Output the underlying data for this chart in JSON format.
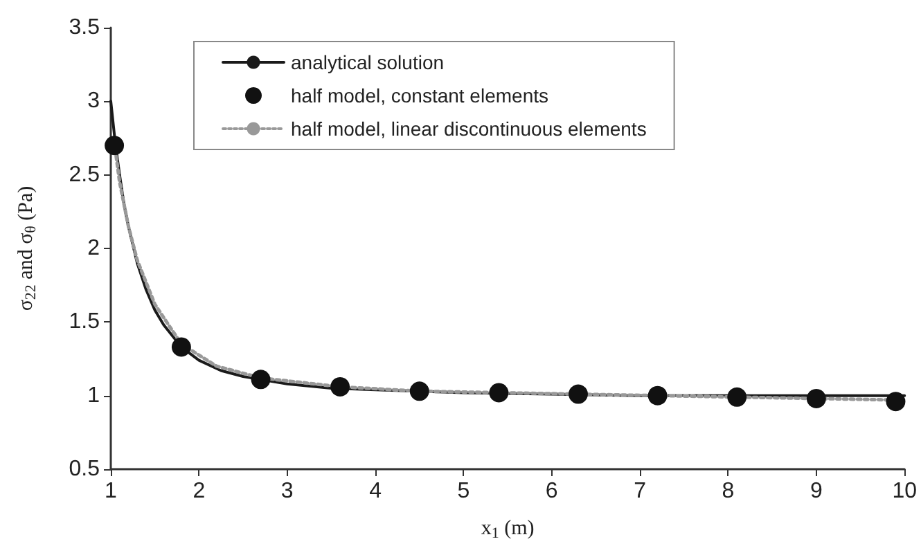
{
  "chart_data": {
    "type": "line",
    "xlabel": "x$_{1}$ (m)",
    "ylabel": "σ$_{22}$ and σ$_{θ}$ (Pa)",
    "xlim": [
      1,
      10
    ],
    "xticks": [
      1,
      2,
      3,
      4,
      5,
      6,
      7,
      8,
      9,
      10
    ],
    "ylim": [
      0.5,
      3.5
    ],
    "yticks": [
      0.5,
      1,
      1.5,
      2,
      2.5,
      3,
      3.5
    ],
    "grid": false,
    "legend": "top",
    "series": [
      {
        "name": "analytical solution",
        "color": "#1a1a1a",
        "line_style": "solid",
        "x": [
          1,
          1.05,
          1.1,
          1.15,
          1.2,
          1.3,
          1.4,
          1.5,
          1.6,
          1.8,
          2,
          2.25,
          2.5,
          3,
          3.5,
          4,
          5,
          6,
          7,
          8,
          9,
          10
        ],
        "values": [
          3.0,
          2.72,
          2.5,
          2.3,
          2.15,
          1.9,
          1.72,
          1.58,
          1.48,
          1.33,
          1.24,
          1.17,
          1.13,
          1.08,
          1.05,
          1.04,
          1.02,
          1.01,
          1.0,
          1.0,
          1.0,
          1.0
        ]
      },
      {
        "name": "half model, constant elements",
        "type": "scatter",
        "marker": "circle",
        "color": "#111111",
        "x": [
          1.04,
          1.8,
          2.7,
          3.6,
          4.5,
          5.4,
          6.3,
          7.2,
          8.1,
          9.0,
          9.9
        ],
        "values": [
          2.7,
          1.33,
          1.11,
          1.06,
          1.03,
          1.02,
          1.01,
          1.0,
          0.99,
          0.98,
          0.96
        ]
      },
      {
        "name": "half model, linear discontinuous elements",
        "color": "#999999",
        "line_style": "dotted",
        "x": [
          1.04,
          1.1,
          1.2,
          1.3,
          1.5,
          1.8,
          2.2,
          2.7,
          3.6,
          4.5,
          5.4,
          6.3,
          7.2,
          8.1,
          9.0,
          9.9
        ],
        "values": [
          2.72,
          2.45,
          2.15,
          1.92,
          1.62,
          1.35,
          1.2,
          1.12,
          1.06,
          1.03,
          1.02,
          1.01,
          1.0,
          0.99,
          0.98,
          0.97
        ]
      }
    ]
  }
}
